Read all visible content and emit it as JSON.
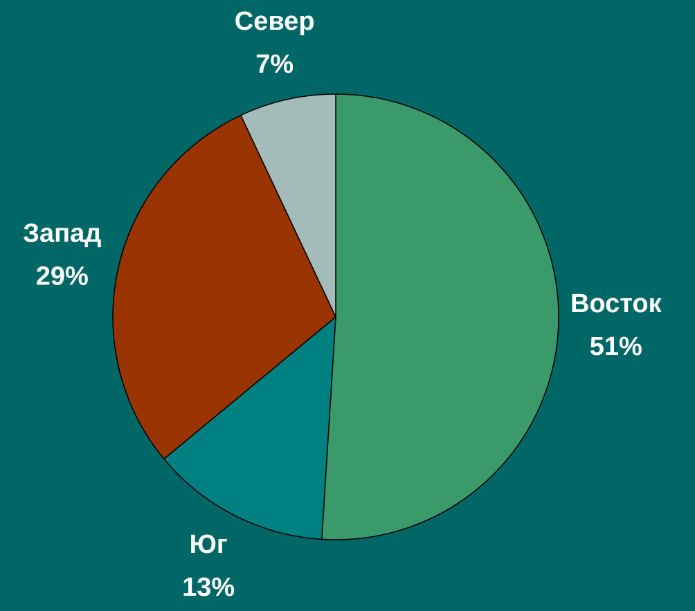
{
  "chart_data": {
    "type": "pie",
    "categories": [
      "Восток",
      "Юг",
      "Запад",
      "Север"
    ],
    "values": [
      51,
      13,
      29,
      7
    ],
    "value_labels": [
      "51%",
      "13%",
      "29%",
      "7%"
    ],
    "colors": [
      "#3a9a6a",
      "#008080",
      "#993300",
      "#a3bbb9"
    ]
  }
}
